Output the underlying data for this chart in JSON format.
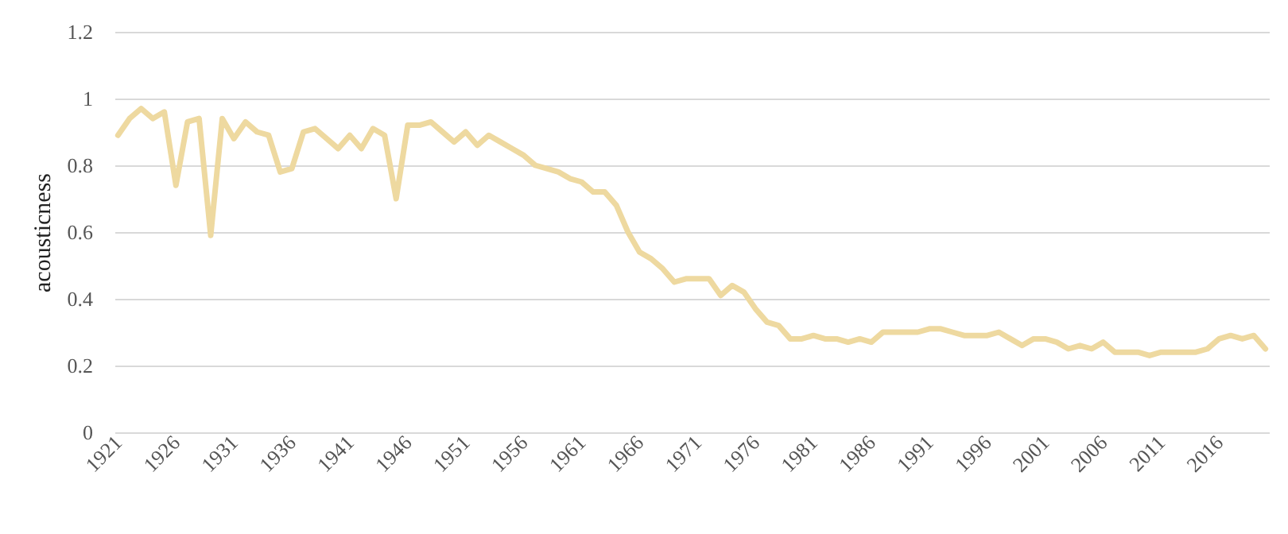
{
  "chart_data": {
    "type": "line",
    "ylabel": "acousticness",
    "categories": [
      "1921",
      null,
      null,
      null,
      null,
      "1926",
      null,
      null,
      null,
      null,
      "1931",
      null,
      null,
      null,
      null,
      "1936",
      null,
      null,
      null,
      null,
      "1941",
      null,
      null,
      null,
      null,
      "1946",
      null,
      null,
      null,
      null,
      "1951",
      null,
      null,
      null,
      null,
      "1956",
      null,
      null,
      null,
      null,
      "1961",
      null,
      null,
      null,
      null,
      "1966",
      null,
      null,
      null,
      null,
      "1971",
      null,
      null,
      null,
      null,
      "1976",
      null,
      null,
      null,
      null,
      "1981",
      null,
      null,
      null,
      null,
      "1986",
      null,
      null,
      null,
      null,
      "1991",
      null,
      null,
      null,
      null,
      "1996",
      null,
      null,
      null,
      null,
      "2001",
      null,
      null,
      null,
      null,
      "2006",
      null,
      null,
      null,
      null,
      "2011",
      null,
      null,
      null,
      null,
      "2016",
      null,
      null,
      null,
      null
    ],
    "series": [
      {
        "color": "#eed9a0",
        "values": [
          0.89,
          0.94,
          0.97,
          0.94,
          0.96,
          0.74,
          0.93,
          0.94,
          0.59,
          0.94,
          0.88,
          0.93,
          0.9,
          0.89,
          0.78,
          0.79,
          0.9,
          0.91,
          0.88,
          0.85,
          0.89,
          0.85,
          0.91,
          0.89,
          0.7,
          0.92,
          0.92,
          0.93,
          0.9,
          0.87,
          0.9,
          0.86,
          0.89,
          0.87,
          0.85,
          0.83,
          0.8,
          0.79,
          0.78,
          0.76,
          0.75,
          0.72,
          0.72,
          0.68,
          0.6,
          0.54,
          0.52,
          0.49,
          0.45,
          0.46,
          0.46,
          0.46,
          0.41,
          0.44,
          0.42,
          0.37,
          0.33,
          0.32,
          0.28,
          0.28,
          0.29,
          0.28,
          0.28,
          0.27,
          0.28,
          0.27,
          0.3,
          0.3,
          0.3,
          0.3,
          0.31,
          0.31,
          0.3,
          0.29,
          0.29,
          0.29,
          0.3,
          0.28,
          0.26,
          0.28,
          0.28,
          0.27,
          0.25,
          0.26,
          0.25,
          0.27,
          0.24,
          0.24,
          0.24,
          0.23,
          0.24,
          0.24,
          0.24,
          0.24,
          0.25,
          0.28,
          0.29,
          0.28,
          0.29,
          0.25
        ]
      }
    ],
    "ylim": [
      0,
      1.2
    ],
    "yticks": [
      0,
      0.2,
      0.4,
      0.6,
      0.8,
      1,
      1.2
    ],
    "grid": "y"
  }
}
